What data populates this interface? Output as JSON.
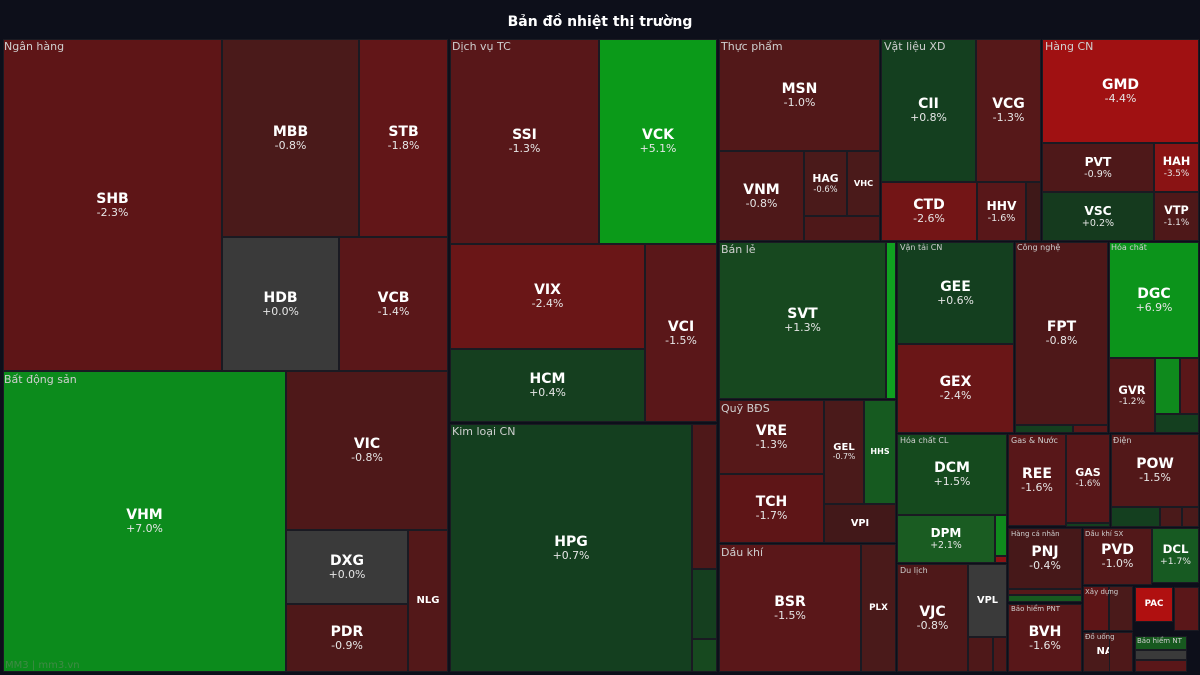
{
  "header": {
    "title": "Bản đồ nhiệt thị trường"
  },
  "footer": {
    "text": "MM3 | mm3.vn"
  },
  "colors": {
    "background": "#0d0f1a",
    "strong_down": "#a51213",
    "down": "#631618",
    "slight_down": "#4e1819",
    "flat": "#3a3a3a",
    "slight_up": "#153f1f",
    "up": "#1a5c23",
    "strong_up": "#0c8f1b"
  },
  "sectors": [
    {
      "name": "Ngân hàng",
      "tiles": [
        {
          "ticker": "SHB",
          "change": "-2.3%",
          "color": "#5e1517"
        },
        {
          "ticker": "MBB",
          "change": "-0.8%",
          "color": "#4a1a1a"
        },
        {
          "ticker": "STB",
          "change": "-1.8%",
          "color": "#621618"
        },
        {
          "ticker": "HDB",
          "change": "+0.0%",
          "color": "#3a3a3a"
        },
        {
          "ticker": "VCB",
          "change": "-1.4%",
          "color": "#5a1719"
        }
      ]
    },
    {
      "name": "Bất động sản",
      "tiles": [
        {
          "ticker": "VHM",
          "change": "+7.0%",
          "color": "#0c8b1c"
        },
        {
          "ticker": "VIC",
          "change": "-0.8%",
          "color": "#4e1819"
        },
        {
          "ticker": "DXG",
          "change": "+0.0%",
          "color": "#3a3a3a"
        },
        {
          "ticker": "PDR",
          "change": "-0.9%",
          "color": "#4e1819"
        },
        {
          "ticker": "NLG",
          "change": "",
          "color": "#531819"
        }
      ]
    },
    {
      "name": "Dịch vụ TC",
      "tiles": [
        {
          "ticker": "SSI",
          "change": "-1.3%",
          "color": "#581719"
        },
        {
          "ticker": "VCK",
          "change": "+5.1%",
          "color": "#0b9a19"
        },
        {
          "ticker": "VIX",
          "change": "-2.4%",
          "color": "#6a1617"
        },
        {
          "ticker": "HCM",
          "change": "+0.4%",
          "color": "#153f1f"
        },
        {
          "ticker": "VCI",
          "change": "-1.5%",
          "color": "#5a1719"
        }
      ]
    },
    {
      "name": "Kim loại CN",
      "tiles": [
        {
          "ticker": "HPG",
          "change": "+0.7%",
          "color": "#143f1f"
        },
        {
          "ticker": "",
          "change": "",
          "color": "#4e1819"
        },
        {
          "ticker": "",
          "change": "",
          "color": "#153f1f"
        },
        {
          "ticker": "",
          "change": "",
          "color": "#17491f"
        }
      ]
    },
    {
      "name": "Thực phẩm",
      "tiles": [
        {
          "ticker": "MSN",
          "change": "-1.0%",
          "color": "#521819"
        },
        {
          "ticker": "VNM",
          "change": "-0.8%",
          "color": "#4e1819"
        },
        {
          "ticker": "HAG",
          "change": "-0.6%",
          "color": "#4a1a1a"
        },
        {
          "ticker": "VHC",
          "change": "",
          "color": "#4a1a1a"
        },
        {
          "ticker": "",
          "change": "",
          "color": "#4e1819"
        }
      ]
    },
    {
      "name": "Vật liệu XD",
      "tiles": [
        {
          "ticker": "CII",
          "change": "+0.8%",
          "color": "#143f1f"
        },
        {
          "ticker": "VCG",
          "change": "-1.3%",
          "color": "#561819"
        },
        {
          "ticker": "CTD",
          "change": "-2.6%",
          "color": "#731516"
        },
        {
          "ticker": "HHV",
          "change": "-1.6%",
          "color": "#581719"
        },
        {
          "ticker": "",
          "change": "",
          "color": "#3e1818"
        }
      ]
    },
    {
      "name": "Hàng CN",
      "tiles": [
        {
          "ticker": "GMD",
          "change": "-4.4%",
          "color": "#a01112"
        },
        {
          "ticker": "PVT",
          "change": "-0.9%",
          "color": "#4e1819"
        },
        {
          "ticker": "HAH",
          "change": "-3.5%",
          "color": "#8a1314"
        },
        {
          "ticker": "VSC",
          "change": "+0.2%",
          "color": "#153a1e"
        },
        {
          "ticker": "VTP",
          "change": "-1.1%",
          "color": "#4e1819"
        }
      ]
    },
    {
      "name": "Bán lẻ",
      "tiles": [
        {
          "ticker": "SVT",
          "change": "+1.3%",
          "color": "#17481f"
        },
        {
          "ticker": "",
          "change": "",
          "color": "#10a020"
        }
      ]
    },
    {
      "name": "Vận tải CN",
      "tiles": [
        {
          "ticker": "GEE",
          "change": "+0.6%",
          "color": "#143f1f"
        },
        {
          "ticker": "GEX",
          "change": "-2.4%",
          "color": "#6a1617"
        }
      ]
    },
    {
      "name": "Công nghệ",
      "tiles": [
        {
          "ticker": "FPT",
          "change": "-0.8%",
          "color": "#4e1819"
        },
        {
          "ticker": "",
          "change": "",
          "color": "#153f1f"
        },
        {
          "ticker": "",
          "change": "",
          "color": "#5a1719"
        }
      ]
    },
    {
      "name": "Hóa chất",
      "tiles": [
        {
          "ticker": "DGC",
          "change": "+6.9%",
          "color": "#0c941b"
        },
        {
          "ticker": "GVR",
          "change": "-1.2%",
          "color": "#521819"
        },
        {
          "ticker": "",
          "change": "",
          "color": "#0f8a1d"
        },
        {
          "ticker": "",
          "change": "",
          "color": "#5a1719"
        },
        {
          "ticker": "",
          "change": "",
          "color": "#143f1f"
        }
      ]
    },
    {
      "name": "Quỹ BĐS",
      "tiles": [
        {
          "ticker": "VRE",
          "change": "-1.3%",
          "color": "#561819"
        },
        {
          "ticker": "TCH",
          "change": "-1.7%",
          "color": "#5e1517"
        },
        {
          "ticker": "GEL",
          "change": "-0.7%",
          "color": "#4a1a1a"
        },
        {
          "ticker": "HHS",
          "change": "",
          "color": "#165a20"
        },
        {
          "ticker": "VPI",
          "change": "",
          "color": "#421819"
        }
      ]
    },
    {
      "name": "Dầu khí",
      "tiles": [
        {
          "ticker": "BSR",
          "change": "-1.5%",
          "color": "#5a1719"
        },
        {
          "ticker": "PLX",
          "change": "",
          "color": "#4a1a1a"
        }
      ]
    },
    {
      "name": "Hóa chất CL",
      "tiles": [
        {
          "ticker": "DCM",
          "change": "+1.5%",
          "color": "#154a1e"
        },
        {
          "ticker": "DPM",
          "change": "+2.1%",
          "color": "#1a5c22"
        },
        {
          "ticker": "",
          "change": "",
          "color": "#0f8a1d"
        },
        {
          "ticker": "",
          "change": "",
          "color": "#8a1314"
        }
      ]
    },
    {
      "name": "Du lịch",
      "tiles": [
        {
          "ticker": "VJC",
          "change": "-0.8%",
          "color": "#4e1819"
        },
        {
          "ticker": "VPL",
          "change": "",
          "color": "#3a3a3a"
        },
        {
          "ticker": "",
          "change": "",
          "color": "#4e1819"
        },
        {
          "ticker": "",
          "change": "",
          "color": "#4e1819"
        }
      ]
    },
    {
      "name": "Gas & Nước",
      "tiles": [
        {
          "ticker": "REE",
          "change": "-1.6%",
          "color": "#581719"
        },
        {
          "ticker": "GAS",
          "change": "-1.6%",
          "color": "#581719"
        },
        {
          "ticker": "",
          "change": "",
          "color": "#143f1f"
        }
      ]
    },
    {
      "name": "Điện",
      "tiles": [
        {
          "ticker": "POW",
          "change": "-1.5%",
          "color": "#521819"
        },
        {
          "ticker": "",
          "change": "",
          "color": "#143f1f"
        },
        {
          "ticker": "",
          "change": "",
          "color": "#4a1a1a"
        },
        {
          "ticker": "",
          "change": "",
          "color": "#4a1a1a"
        }
      ]
    },
    {
      "name": "Hàng cá nhân",
      "tiles": [
        {
          "ticker": "PNJ",
          "change": "-0.4%",
          "color": "#461819"
        },
        {
          "ticker": "",
          "change": "",
          "color": "#561819"
        },
        {
          "ticker": "",
          "change": "",
          "color": "#17591f"
        }
      ]
    },
    {
      "name": "Bảo hiểm PNT",
      "tiles": [
        {
          "ticker": "BVH",
          "change": "-1.6%",
          "color": "#581719"
        }
      ]
    },
    {
      "name": "Dầu khí SX",
      "tiles": [
        {
          "ticker": "PVD",
          "change": "-1.0%",
          "color": "#521819"
        },
        {
          "ticker": "DCL",
          "change": "+1.7%",
          "color": "#175a22"
        }
      ]
    },
    {
      "name": "Xây dựng",
      "tiles": [
        {
          "ticker": "",
          "change": "",
          "color": "#5e1517"
        },
        {
          "ticker": "",
          "change": "",
          "color": "#4a1a1a"
        },
        {
          "ticker": "PAC",
          "change": "",
          "color": "#b01010"
        },
        {
          "ticker": "",
          "change": "",
          "color": "#5a1719"
        }
      ]
    },
    {
      "name": "Đồ uống",
      "tiles": [
        {
          "ticker": "NAF",
          "change": "",
          "color": "#4a1a1a"
        },
        {
          "ticker": "",
          "change": "",
          "color": "#4e1819"
        }
      ]
    },
    {
      "name": "Bảo hiểm NT",
      "tiles": [
        {
          "ticker": "",
          "change": "",
          "color": "#17591f"
        },
        {
          "ticker": "",
          "change": "",
          "color": "#3a3a3a"
        },
        {
          "ticker": "",
          "change": "",
          "color": "#5a1719"
        }
      ]
    }
  ]
}
